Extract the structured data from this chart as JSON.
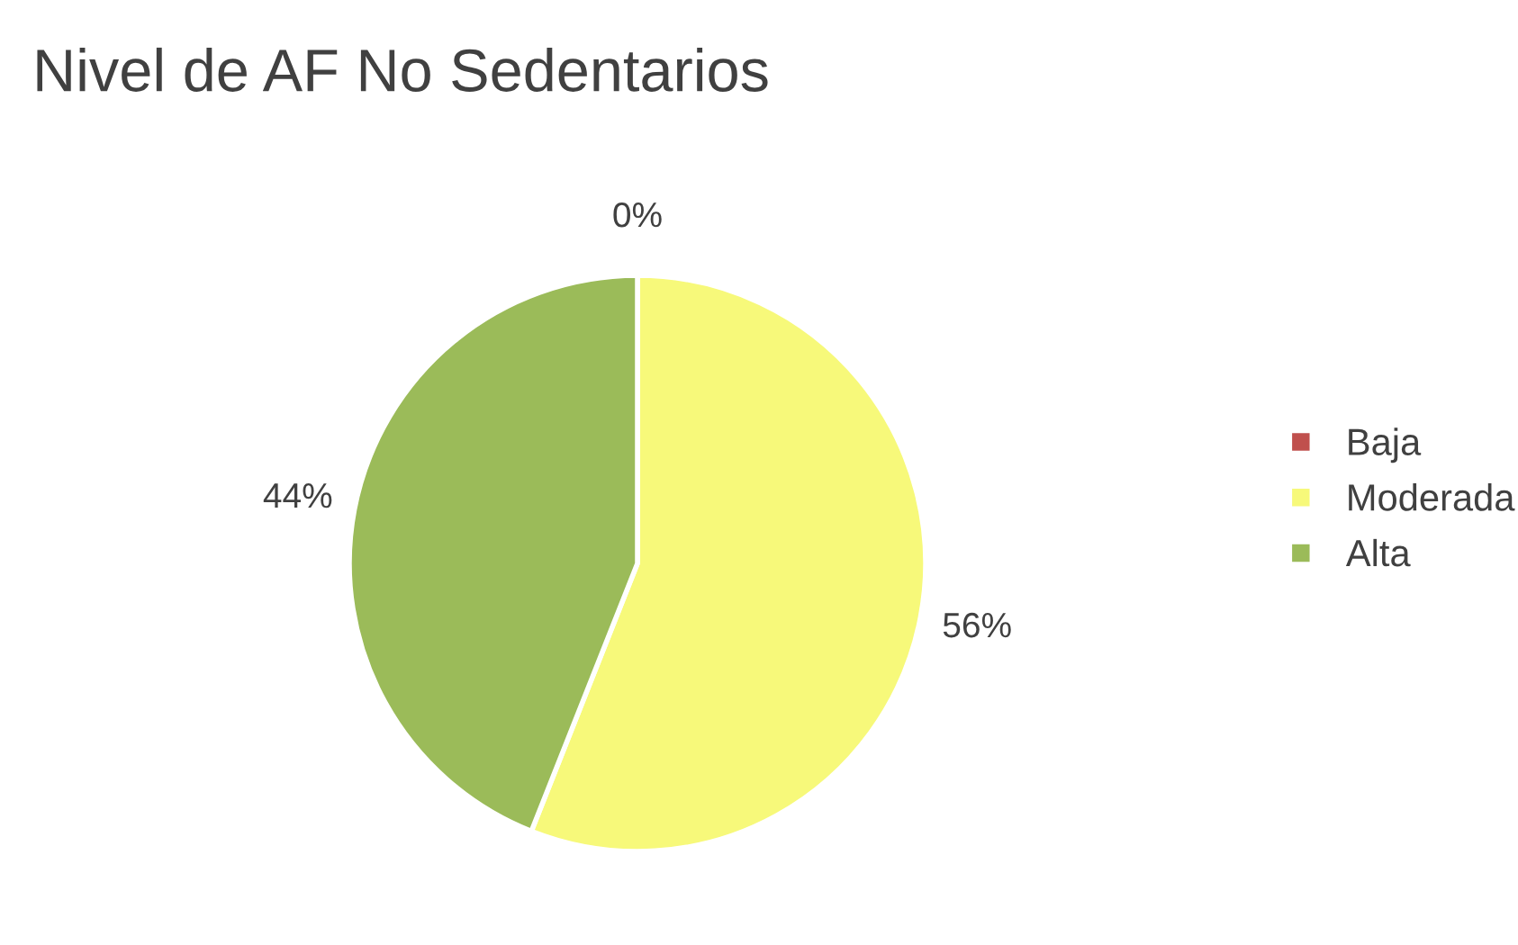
{
  "chart_data": {
    "type": "pie",
    "title": "Nivel de AF No Sedentarios",
    "categories": [
      "Baja",
      "Moderada",
      "Alta"
    ],
    "values": [
      0,
      56,
      44
    ],
    "colors": [
      "#c0504d",
      "#f7f97a",
      "#9bbb59"
    ],
    "value_labels": [
      "0%",
      "56%",
      "44%"
    ],
    "legend": "right"
  }
}
